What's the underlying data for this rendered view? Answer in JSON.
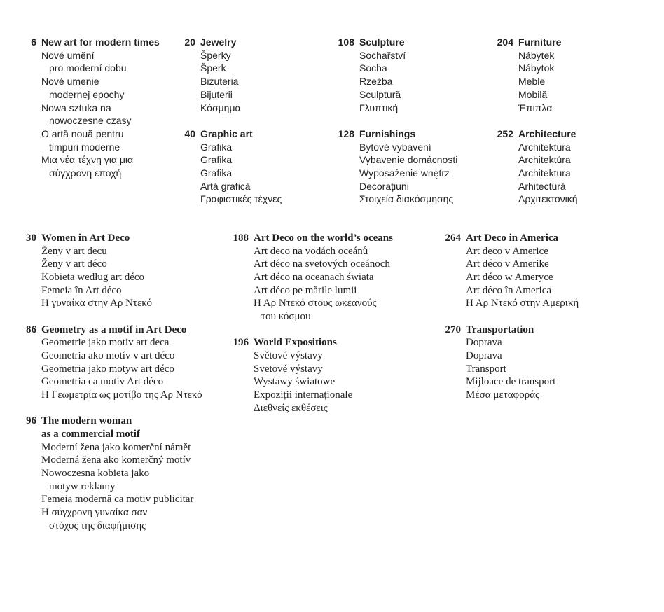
{
  "sections": [
    {
      "style": "sans",
      "columns": [
        [
          {
            "page": "6",
            "title": [
              "New art for modern times"
            ],
            "translations": [
              [
                "Nové umění",
                "pro moderní dobu"
              ],
              [
                "Nové umenie",
                "modernej epochy"
              ],
              [
                "Nowa sztuka na",
                "nowoczesne czasy"
              ],
              [
                "O artă nouă pentru",
                "timpuri moderne"
              ],
              [
                "Μια νέα τέχνη για μια",
                "σύγχρονη εποχή"
              ]
            ]
          }
        ],
        [
          {
            "page": "20",
            "title": [
              "Jewelry"
            ],
            "translations": [
              [
                "Šperky"
              ],
              [
                "Šperk"
              ],
              [
                "Biżuteria"
              ],
              [
                "Bijuterii"
              ],
              [
                "Κόσμημα"
              ]
            ]
          },
          {
            "page": "40",
            "title": [
              "Graphic art"
            ],
            "translations": [
              [
                "Grafika"
              ],
              [
                "Grafika"
              ],
              [
                "Grafika"
              ],
              [
                "Artă grafică"
              ],
              [
                "Γραφιστικές τέχνες"
              ]
            ]
          }
        ],
        [
          {
            "page": "108",
            "title": [
              "Sculpture"
            ],
            "translations": [
              [
                "Sochařství"
              ],
              [
                "Socha"
              ],
              [
                "Rzeźba"
              ],
              [
                "Sculptură"
              ],
              [
                "Γλυπτική"
              ]
            ]
          },
          {
            "page": "128",
            "title": [
              "Furnishings"
            ],
            "translations": [
              [
                "Bytové vybavení"
              ],
              [
                "Vybavenie domácnosti"
              ],
              [
                "Wyposażenie wnętrz"
              ],
              [
                "Decorațiuni"
              ],
              [
                "Στοιχεία διακόσμησης"
              ]
            ]
          }
        ],
        [
          {
            "page": "204",
            "title": [
              "Furniture"
            ],
            "translations": [
              [
                "Nábytek"
              ],
              [
                "Nábytok"
              ],
              [
                "Meble"
              ],
              [
                "Mobilă"
              ],
              [
                "Έπιπλα"
              ]
            ]
          },
          {
            "page": "252",
            "title": [
              "Architecture"
            ],
            "translations": [
              [
                "Architektura"
              ],
              [
                "Architektúra"
              ],
              [
                "Architektura"
              ],
              [
                "Arhitectură"
              ],
              [
                "Αρχιτεκτονική"
              ]
            ]
          }
        ]
      ]
    },
    {
      "style": "serif",
      "columns": [
        [
          {
            "page": "30",
            "title": [
              "Women in Art Deco"
            ],
            "translations": [
              [
                "Ženy v art decu"
              ],
              [
                "Ženy v art déco"
              ],
              [
                "Kobieta według art déco"
              ],
              [
                "Femeia în Art déco"
              ],
              [
                "Η γυναίκα στην Αρ Ντεκό"
              ]
            ]
          },
          {
            "page": "86",
            "title": [
              "Geometry as a motif in Art Deco"
            ],
            "translations": [
              [
                "Geometrie jako motiv art deca"
              ],
              [
                "Geometria ako motív v art déco"
              ],
              [
                "Geometria jako motyw art déco"
              ],
              [
                "Geometria ca motiv Art déco"
              ],
              [
                "Η Γεωμετρία ως μοτίβο της Αρ Ντεκό"
              ]
            ]
          },
          {
            "page": "96",
            "title": [
              "The modern woman",
              "as a commercial motif"
            ],
            "translations": [
              [
                "Moderní žena jako komerční námět"
              ],
              [
                "Moderná žena ako komerčný motív"
              ],
              [
                "Nowoczesna kobieta jako",
                "motyw reklamy"
              ],
              [
                "Femeia modernă ca motiv publicitar"
              ],
              [
                "Η σύγχρονη γυναίκα σαν",
                "στόχος της διαφήμισης"
              ]
            ]
          }
        ],
        [
          {
            "page": "188",
            "title": [
              "Art Deco on the world’s oceans"
            ],
            "translations": [
              [
                "Art deco na vodách oceánů"
              ],
              [
                "Art déco na svetových oceánoch"
              ],
              [
                "Art déco na oceanach świata"
              ],
              [
                "Art déco pe mările lumii"
              ],
              [
                "Η Αρ Ντεκό στους ωκεανούς",
                "του κόσμου"
              ]
            ]
          },
          {
            "page": "196",
            "title": [
              "World Expositions"
            ],
            "translations": [
              [
                "Světové výstavy"
              ],
              [
                "Svetové výstavy"
              ],
              [
                "Wystawy światowe"
              ],
              [
                "Expoziții internaționale"
              ],
              [
                "Διεθνείς εκθέσεις"
              ]
            ]
          }
        ],
        [
          {
            "page": "264",
            "title": [
              "Art Deco in America"
            ],
            "translations": [
              [
                "Art deco v Americe"
              ],
              [
                "Art déco v Amerike"
              ],
              [
                "Art déco w Ameryce"
              ],
              [
                "Art déco în America"
              ],
              [
                "Η Αρ Ντεκό στην Αμερική"
              ]
            ]
          },
          {
            "page": "270",
            "title": [
              "Transportation"
            ],
            "translations": [
              [
                "Doprava"
              ],
              [
                "Doprava"
              ],
              [
                "Transport"
              ],
              [
                "Mijloace de transport"
              ],
              [
                "Μέσα μεταφοράς"
              ]
            ]
          }
        ]
      ]
    }
  ]
}
